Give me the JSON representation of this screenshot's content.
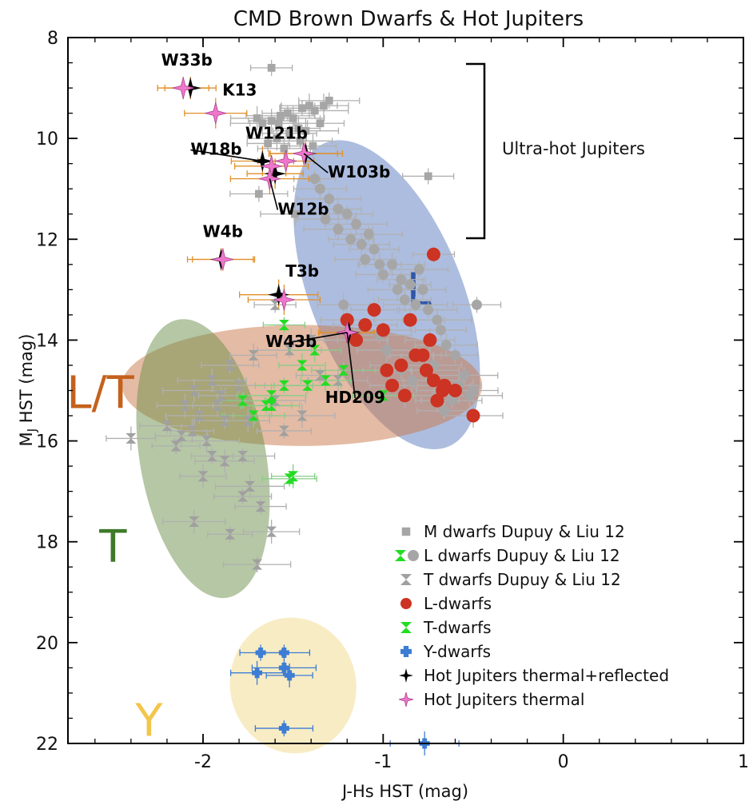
{
  "chart_data": {
    "type": "scatter",
    "title": "CMD Brown Dwarfs & Hot Jupiters",
    "xlabel": "J-Hs HST (mag)",
    "ylabel": "MJ HST (mag)",
    "ylabel_main": "M",
    "ylabel_sub": "J",
    "ylabel_rest": " HST (mag)",
    "xlim": [
      -2.75,
      1.0
    ],
    "ylim": [
      22,
      8
    ],
    "y_inverted": true,
    "grid": false,
    "legend_position": "lower-right",
    "xticks": [
      -2,
      -1,
      0,
      1
    ],
    "xtick_labels": [
      "-2",
      "-1",
      "0",
      "1"
    ],
    "yticks": [
      8,
      10,
      12,
      14,
      16,
      18,
      20,
      22
    ],
    "ytick_labels": [
      "8",
      "10",
      "12",
      "14",
      "16",
      "18",
      "20",
      "22"
    ],
    "regions": [
      {
        "label": "L",
        "cx": -0.98,
        "cy": 13.1,
        "rx": 0.42,
        "ry": 3.25,
        "rotate": -22,
        "color": "#5b7bc0",
        "label_x": -0.8,
        "label_y": 13.3,
        "label_color": "#2f56a8"
      },
      {
        "label": "L/T",
        "cx": -1.45,
        "cy": 14.9,
        "rx": 1.0,
        "ry": 1.2,
        "rotate": 0,
        "color": "#c9784a",
        "label_x": -2.57,
        "label_y": 15.35,
        "label_color": "#c4611c"
      },
      {
        "label": "T",
        "cx": -2.0,
        "cy": 16.35,
        "rx": 0.35,
        "ry": 2.8,
        "rotate": -10,
        "color": "#6b8f4a",
        "label_x": -2.5,
        "label_y": 18.4,
        "label_color": "#3f7a2a"
      },
      {
        "label": "Y",
        "cx": -1.5,
        "cy": 20.85,
        "rx": 0.35,
        "ry": 1.35,
        "rotate": -12,
        "color": "#f2d98a",
        "label_x": -2.3,
        "label_y": 21.85,
        "label_color": "#f3c54a"
      }
    ],
    "series": [
      {
        "name": "M dwarfs Dupuy & Liu 12",
        "marker": "square",
        "color": "#a6a6a6",
        "points": [
          [
            -1.62,
            8.6
          ],
          [
            -1.7,
            9.6
          ],
          [
            -1.67,
            9.7
          ],
          [
            -1.62,
            9.65
          ],
          [
            -1.58,
            9.7
          ],
          [
            -1.57,
            9.55
          ],
          [
            -1.53,
            9.5
          ],
          [
            -1.5,
            9.6
          ],
          [
            -1.45,
            9.4
          ],
          [
            -1.41,
            9.35
          ],
          [
            -1.38,
            9.45
          ],
          [
            -1.33,
            9.35
          ],
          [
            -1.3,
            9.25
          ],
          [
            -1.47,
            9.8
          ],
          [
            -1.52,
            9.9
          ],
          [
            -1.43,
            9.85
          ],
          [
            -1.35,
            9.7
          ],
          [
            -1.59,
            10.0
          ],
          [
            -1.64,
            10.1
          ],
          [
            -1.55,
            10.2
          ],
          [
            -1.46,
            10.05
          ],
          [
            -1.39,
            10.15
          ],
          [
            -1.69,
            11.1
          ],
          [
            -1.49,
            11.5
          ],
          [
            -0.75,
            10.75
          ]
        ]
      },
      {
        "name": "L dwarfs Dupuy & Liu 12",
        "marker": "circle",
        "color": "#a6a6a6",
        "points": [
          [
            -1.38,
            10.8
          ],
          [
            -1.35,
            11.0
          ],
          [
            -1.3,
            11.2
          ],
          [
            -1.25,
            11.4
          ],
          [
            -1.32,
            11.6
          ],
          [
            -1.25,
            11.8
          ],
          [
            -1.2,
            11.5
          ],
          [
            -1.15,
            11.7
          ],
          [
            -1.18,
            12.0
          ],
          [
            -1.12,
            12.1
          ],
          [
            -1.08,
            11.9
          ],
          [
            -1.05,
            12.2
          ],
          [
            -1.1,
            12.4
          ],
          [
            -1.02,
            12.5
          ],
          [
            -1.0,
            12.7
          ],
          [
            -0.95,
            12.5
          ],
          [
            -0.9,
            12.8
          ],
          [
            -0.92,
            13.0
          ],
          [
            -0.85,
            12.9
          ],
          [
            -0.88,
            13.2
          ],
          [
            -0.82,
            13.3
          ],
          [
            -0.78,
            13.0
          ],
          [
            -0.75,
            13.4
          ],
          [
            -0.7,
            13.6
          ],
          [
            -0.68,
            13.8
          ],
          [
            -0.65,
            14.1
          ],
          [
            -0.6,
            14.3
          ],
          [
            -0.72,
            14.5
          ],
          [
            -0.55,
            14.7
          ],
          [
            -0.5,
            15.0
          ],
          [
            -0.62,
            15.2
          ],
          [
            -0.58,
            14.9
          ],
          [
            -0.66,
            15.4
          ],
          [
            -0.52,
            15.1
          ],
          [
            -0.48,
            13.3
          ],
          [
            -0.98,
            14.2
          ],
          [
            -0.9,
            14.6
          ],
          [
            -1.22,
            13.3
          ],
          [
            -1.02,
            13.9
          ],
          [
            -0.84,
            14.8
          ],
          [
            -0.8,
            12.6
          ]
        ]
      },
      {
        "name": "T dwarfs Dupuy & Liu 12",
        "marker": "hourglass",
        "color": "#a0a0a0",
        "points": [
          [
            -1.6,
            13.3
          ],
          [
            -1.4,
            14.0
          ],
          [
            -1.52,
            14.2
          ],
          [
            -1.72,
            14.3
          ],
          [
            -1.85,
            14.5
          ],
          [
            -1.95,
            14.8
          ],
          [
            -1.8,
            14.9
          ],
          [
            -2.05,
            15.0
          ],
          [
            -1.9,
            15.1
          ],
          [
            -2.1,
            15.3
          ],
          [
            -2.02,
            15.5
          ],
          [
            -1.92,
            15.3
          ],
          [
            -1.88,
            15.6
          ],
          [
            -2.06,
            15.8
          ],
          [
            -2.2,
            15.7
          ],
          [
            -1.98,
            16.0
          ],
          [
            -2.15,
            16.1
          ],
          [
            -1.88,
            16.4
          ],
          [
            -1.95,
            16.3
          ],
          [
            -2.12,
            15.9
          ],
          [
            -1.78,
            16.3
          ],
          [
            -2.0,
            16.7
          ],
          [
            -1.78,
            17.1
          ],
          [
            -1.74,
            16.9
          ],
          [
            -1.68,
            17.3
          ],
          [
            -2.05,
            17.6
          ],
          [
            -1.85,
            17.85
          ],
          [
            -1.62,
            17.8
          ],
          [
            -1.7,
            18.45
          ],
          [
            -2.4,
            15.95
          ],
          [
            -1.6,
            15.2
          ],
          [
            -1.75,
            15.6
          ],
          [
            -1.55,
            15.8
          ],
          [
            -1.45,
            15.5
          ],
          [
            -1.35,
            14.7
          ],
          [
            -1.25,
            14.8
          ]
        ]
      },
      {
        "name": "L-dwarfs",
        "marker": "circle",
        "color": "#cc3322",
        "points": [
          [
            -0.72,
            12.3
          ],
          [
            -1.2,
            13.6
          ],
          [
            -1.1,
            13.7
          ],
          [
            -1.05,
            13.4
          ],
          [
            -1.0,
            13.8
          ],
          [
            -0.85,
            13.6
          ],
          [
            -0.82,
            14.3
          ],
          [
            -0.9,
            14.5
          ],
          [
            -0.95,
            14.9
          ],
          [
            -0.88,
            15.1
          ],
          [
            -0.78,
            14.3
          ],
          [
            -0.74,
            14.0
          ],
          [
            -0.72,
            14.8
          ],
          [
            -0.7,
            15.2
          ],
          [
            -0.66,
            14.9
          ],
          [
            -0.76,
            14.6
          ],
          [
            -0.98,
            14.6
          ],
          [
            -0.5,
            15.5
          ],
          [
            -0.6,
            15.0
          ],
          [
            -0.67,
            15.0
          ],
          [
            -1.15,
            14.0
          ]
        ]
      },
      {
        "name": "T-dwarfs",
        "marker": "hourglass",
        "color": "#22dd22",
        "points": [
          [
            -1.55,
            13.7
          ],
          [
            -1.38,
            14.2
          ],
          [
            -1.22,
            14.6
          ],
          [
            -1.45,
            14.5
          ],
          [
            -1.55,
            14.9
          ],
          [
            -1.62,
            15.1
          ],
          [
            -1.65,
            15.3
          ],
          [
            -1.72,
            15.5
          ],
          [
            -1.78,
            15.2
          ],
          [
            -1.62,
            15.3
          ],
          [
            -1.42,
            14.9
          ],
          [
            -1.32,
            14.8
          ],
          [
            -1.0,
            15.1
          ],
          [
            -1.5,
            16.7
          ],
          [
            -1.52,
            16.75
          ]
        ]
      },
      {
        "name": "Y-dwarfs",
        "marker": "plus",
        "color": "#3d7dd4",
        "points": [
          [
            -1.68,
            20.2
          ],
          [
            -1.7,
            20.6
          ],
          [
            -1.55,
            20.5
          ],
          [
            -1.52,
            20.65
          ],
          [
            -1.55,
            21.7
          ],
          [
            -0.77,
            22.0
          ],
          [
            -1.55,
            20.2
          ]
        ]
      },
      {
        "name": "Hot Jupiters thermal+reflected",
        "marker": "star4",
        "color": "#000000",
        "points": [
          [
            -2.07,
            9.0
          ],
          [
            -1.67,
            10.45
          ],
          [
            -1.43,
            10.3
          ],
          [
            -1.6,
            10.7
          ],
          [
            -1.9,
            12.4
          ],
          [
            -1.58,
            13.1
          ],
          [
            -1.19,
            13.85
          ]
        ]
      },
      {
        "name": "Hot Jupiters thermal",
        "marker": "star4",
        "color": "#ee77cc",
        "points": [
          [
            -2.11,
            9.0
          ],
          [
            -1.93,
            9.5
          ],
          [
            -1.62,
            10.55
          ],
          [
            -1.54,
            10.45
          ],
          [
            -1.44,
            10.3
          ],
          [
            -1.63,
            10.8
          ],
          [
            -1.89,
            12.4
          ],
          [
            -1.55,
            13.2
          ],
          [
            -1.2,
            13.85
          ]
        ]
      }
    ],
    "hot_jupiter_labels": [
      {
        "label": "W33b",
        "x": -2.09,
        "y": 9.0
      },
      {
        "label": "K13",
        "x": -1.93,
        "y": 9.5
      },
      {
        "label": "W121b",
        "x": -1.53,
        "y": 10.45
      },
      {
        "label": "W18b",
        "x": -1.67,
        "y": 10.45
      },
      {
        "label": "W103b",
        "x": -1.44,
        "y": 10.3
      },
      {
        "label": "W12b",
        "x": -1.63,
        "y": 10.8
      },
      {
        "label": "W4b",
        "x": -1.89,
        "y": 12.4
      },
      {
        "label": "T3b",
        "x": -1.56,
        "y": 13.15
      },
      {
        "label": "W43b",
        "x": -1.2,
        "y": 13.85
      },
      {
        "label": "HD209",
        "x": -1.2,
        "y": 13.85
      }
    ],
    "annotation": "Ultra-hot Jupiters",
    "legend": [
      {
        "label": "M dwarfs Dupuy & Liu 12",
        "marker": "square",
        "color": "#a6a6a6"
      },
      {
        "label": "L dwarfs Dupuy & Liu 12",
        "marker": "circle",
        "color": "#a6a6a6",
        "extra_marker": "hourglass",
        "extra_color": "#22dd22"
      },
      {
        "label": "T dwarfs Dupuy & Liu 12",
        "marker": "hourglass",
        "color": "#a0a0a0"
      },
      {
        "label": "L-dwarfs",
        "marker": "circle",
        "color": "#cc3322"
      },
      {
        "label": "T-dwarfs",
        "marker": "hourglass",
        "color": "#22dd22"
      },
      {
        "label": "Y-dwarfs",
        "marker": "plus",
        "color": "#3d7dd4"
      },
      {
        "label": "Hot Jupiters thermal+reflected",
        "marker": "star4",
        "color": "#000000"
      },
      {
        "label": "Hot Jupiters thermal",
        "marker": "star4",
        "color": "#ee77cc"
      }
    ]
  }
}
